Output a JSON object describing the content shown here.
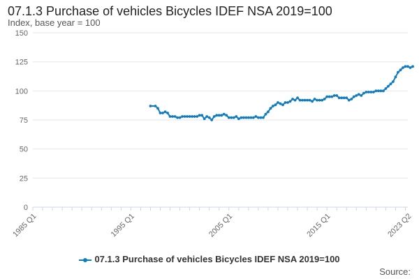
{
  "title": "07.1.3 Purchase of vehicles Bicycles IDEF NSA 2019=100",
  "subtitle": "Index, base year = 100",
  "source_label": "Source:",
  "colors": {
    "series": "#0f7cbf",
    "grid": "#e6e6e6",
    "axis": "#ccd6eb",
    "tick_text": "#666666"
  },
  "chart_data": {
    "type": "line",
    "title": "07.1.3 Purchase of vehicles Bicycles IDEF NSA 2019=100",
    "ylabel": "Index, base year = 100",
    "xlabel": "",
    "ylim": [
      0,
      150
    ],
    "yticks": [
      0,
      25,
      50,
      75,
      100,
      125,
      150
    ],
    "xlim": [
      "1985 Q1",
      "2023 Q2"
    ],
    "x_tick_labels": [
      "1985 Q1",
      "1995 Q1",
      "2005 Q1",
      "2015 Q1",
      "2023 Q2"
    ],
    "grid": true,
    "legend_position": "bottom",
    "series": [
      {
        "name": "07.1.3 Purchase of vehicles Bicycles IDEF NSA 2019=100",
        "points": [
          [
            "1997 Q1",
            87
          ],
          [
            "1997 Q3",
            87
          ],
          [
            "1997 Q4",
            85
          ],
          [
            "1998 Q1",
            81
          ],
          [
            "1998 Q2",
            81
          ],
          [
            "1998 Q3",
            82
          ],
          [
            "1998 Q4",
            81
          ],
          [
            "1999 Q1",
            78
          ],
          [
            "1999 Q2",
            78
          ],
          [
            "1999 Q3",
            78
          ],
          [
            "1999 Q4",
            77
          ],
          [
            "2000 Q1",
            77
          ],
          [
            "2000 Q2",
            78
          ],
          [
            "2000 Q3",
            78
          ],
          [
            "2000 Q4",
            78
          ],
          [
            "2001 Q1",
            78
          ],
          [
            "2001 Q2",
            78
          ],
          [
            "2001 Q3",
            78
          ],
          [
            "2001 Q4",
            78
          ],
          [
            "2002 Q1",
            79
          ],
          [
            "2002 Q2",
            79
          ],
          [
            "2002 Q3",
            76
          ],
          [
            "2002 Q4",
            78
          ],
          [
            "2003 Q1",
            77
          ],
          [
            "2003 Q2",
            75
          ],
          [
            "2003 Q3",
            78
          ],
          [
            "2003 Q4",
            79
          ],
          [
            "2004 Q1",
            79
          ],
          [
            "2004 Q2",
            79
          ],
          [
            "2004 Q3",
            80
          ],
          [
            "2004 Q4",
            79
          ],
          [
            "2005 Q1",
            77
          ],
          [
            "2005 Q2",
            77
          ],
          [
            "2005 Q3",
            77
          ],
          [
            "2005 Q4",
            78
          ],
          [
            "2006 Q1",
            76
          ],
          [
            "2006 Q2",
            77
          ],
          [
            "2006 Q3",
            77
          ],
          [
            "2006 Q4",
            77
          ],
          [
            "2007 Q1",
            77
          ],
          [
            "2007 Q2",
            77
          ],
          [
            "2007 Q3",
            77
          ],
          [
            "2007 Q4",
            78
          ],
          [
            "2008 Q1",
            77
          ],
          [
            "2008 Q2",
            77
          ],
          [
            "2008 Q3",
            77
          ],
          [
            "2008 Q4",
            80
          ],
          [
            "2009 Q1",
            82
          ],
          [
            "2009 Q2",
            85
          ],
          [
            "2009 Q3",
            87
          ],
          [
            "2009 Q4",
            88
          ],
          [
            "2010 Q1",
            90
          ],
          [
            "2010 Q2",
            89
          ],
          [
            "2010 Q3",
            88
          ],
          [
            "2010 Q4",
            90
          ],
          [
            "2011 Q1",
            90
          ],
          [
            "2011 Q2",
            91
          ],
          [
            "2011 Q3",
            93
          ],
          [
            "2011 Q4",
            92
          ],
          [
            "2012 Q1",
            94
          ],
          [
            "2012 Q2",
            92
          ],
          [
            "2012 Q3",
            92
          ],
          [
            "2012 Q4",
            92
          ],
          [
            "2013 Q1",
            92
          ],
          [
            "2013 Q2",
            92
          ],
          [
            "2013 Q3",
            91
          ],
          [
            "2013 Q4",
            93
          ],
          [
            "2014 Q1",
            92
          ],
          [
            "2014 Q2",
            92
          ],
          [
            "2014 Q3",
            92
          ],
          [
            "2014 Q4",
            93
          ],
          [
            "2015 Q1",
            95
          ],
          [
            "2015 Q2",
            95
          ],
          [
            "2015 Q3",
            95
          ],
          [
            "2015 Q4",
            96
          ],
          [
            "2016 Q1",
            96
          ],
          [
            "2016 Q2",
            94
          ],
          [
            "2016 Q3",
            94
          ],
          [
            "2016 Q4",
            94
          ],
          [
            "2017 Q1",
            94
          ],
          [
            "2017 Q2",
            92
          ],
          [
            "2017 Q3",
            93
          ],
          [
            "2017 Q4",
            95
          ],
          [
            "2018 Q1",
            96
          ],
          [
            "2018 Q2",
            97
          ],
          [
            "2018 Q3",
            96
          ],
          [
            "2018 Q4",
            98
          ],
          [
            "2019 Q1",
            99
          ],
          [
            "2019 Q2",
            99
          ],
          [
            "2019 Q3",
            99
          ],
          [
            "2019 Q4",
            99
          ],
          [
            "2020 Q1",
            100
          ],
          [
            "2020 Q2",
            100
          ],
          [
            "2020 Q3",
            100
          ],
          [
            "2020 Q4",
            100
          ],
          [
            "2021 Q1",
            102
          ],
          [
            "2021 Q2",
            104
          ],
          [
            "2021 Q3",
            106
          ],
          [
            "2021 Q4",
            108
          ],
          [
            "2022 Q1",
            112
          ],
          [
            "2022 Q2",
            116
          ],
          [
            "2022 Q3",
            118
          ],
          [
            "2022 Q4",
            120
          ],
          [
            "2023 Q1",
            121
          ],
          [
            "2023 Q2",
            121
          ],
          [
            "2023 Q3",
            120
          ],
          [
            "2023 Q4",
            121
          ]
        ]
      }
    ]
  }
}
